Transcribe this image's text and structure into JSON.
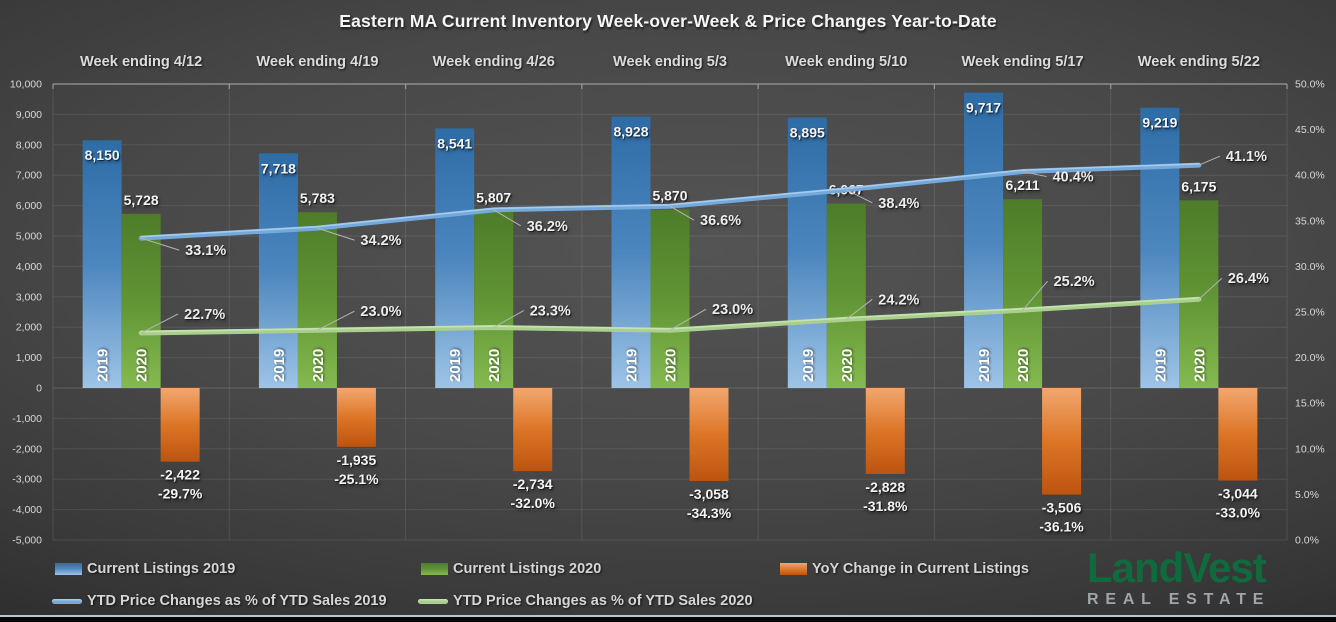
{
  "title": "Eastern MA Current Inventory Week-over-Week & Price Changes Year-to-Date",
  "chart_data": {
    "type": "bar",
    "subtype": "combo bar+line, dual axis",
    "categories": [
      "Week ending 4/12",
      "Week ending 4/19",
      "Week ending 4/26",
      "Week ending 5/3",
      "Week ending 5/10",
      "Week ending 5/17",
      "Week ending 5/22"
    ],
    "series": [
      {
        "name": "Current Listings 2019",
        "kind": "bar",
        "axis": "left",
        "year_label": "2019",
        "values": [
          8150,
          7718,
          8541,
          8928,
          8895,
          9717,
          9219
        ],
        "value_labels": [
          "8,150",
          "7,718",
          "8,541",
          "8,928",
          "8,895",
          "9,717",
          "9,219"
        ],
        "colors": {
          "top": "#2E6CA6",
          "mid": "#4C86BE",
          "bottom": "#9EC4E7"
        },
        "label_placement": "inside-top"
      },
      {
        "name": "Current Listings 2020",
        "kind": "bar",
        "axis": "left",
        "year_label": "2020",
        "values": [
          5728,
          5783,
          5807,
          5870,
          6067,
          6211,
          6175
        ],
        "value_labels": [
          "5,728",
          "5,783",
          "5,807",
          "5,870",
          "6,067",
          "6,211",
          "6,175"
        ],
        "colors": {
          "top": "#4E7C2A",
          "mid": "#619434",
          "bottom": "#84BA50"
        },
        "label_placement": "above-top"
      },
      {
        "name": "YoY Change in Current Listings",
        "kind": "bar",
        "axis": "left",
        "values": [
          -2422,
          -1935,
          -2734,
          -3058,
          -2828,
          -3506,
          -3044
        ],
        "value_labels": [
          "-2,422",
          "-1,935",
          "-2,734",
          "-3,058",
          "-2,828",
          "-3,506",
          "-3,044"
        ],
        "pct_labels": [
          "-29.7%",
          "-25.1%",
          "-32.0%",
          "-34.3%",
          "-31.8%",
          "-36.1%",
          "-33.0%"
        ],
        "colors": {
          "top": "#F2A76F",
          "mid": "#DD7526",
          "bottom": "#BC5410"
        },
        "label_placement": "below-bottom"
      },
      {
        "name": "YTD Price Changes as % of YTD Sales 2019",
        "kind": "line",
        "axis": "right",
        "values": [
          33.1,
          34.2,
          36.2,
          36.6,
          38.4,
          40.4,
          41.1
        ],
        "value_labels": [
          "33.1%",
          "34.2%",
          "36.2%",
          "36.6%",
          "38.4%",
          "40.4%",
          "41.1%"
        ],
        "color": "#74A9DC",
        "highlight": "#A6CBEC"
      },
      {
        "name": "YTD Price Changes as % of YTD Sales 2020",
        "kind": "line",
        "axis": "right",
        "values": [
          22.7,
          23.0,
          23.3,
          23.0,
          24.2,
          25.2,
          26.4
        ],
        "value_labels": [
          "22.7%",
          "23.0%",
          "23.3%",
          "23.0%",
          "24.2%",
          "25.2%",
          "26.4%"
        ],
        "color": "#A9CF8F",
        "highlight": "#C6E2B0"
      }
    ],
    "left_axis": {
      "min": -5000,
      "max": 10000,
      "step": 1000,
      "tick_labels": [
        "10,000",
        "9,000",
        "8,000",
        "7,000",
        "6,000",
        "5,000",
        "4,000",
        "3,000",
        "2,000",
        "1,000",
        "0",
        "-1,000",
        "-2,000",
        "-3,000",
        "-4,000",
        "-5,000"
      ]
    },
    "right_axis": {
      "min": 0,
      "max": 50,
      "step": 5,
      "tick_labels": [
        "50.0%",
        "45.0%",
        "40.0%",
        "35.0%",
        "30.0%",
        "25.0%",
        "20.0%",
        "15.0%",
        "10.0%",
        "5.0%",
        "0.0%"
      ]
    },
    "grid": true,
    "legend_position": "bottom"
  },
  "legend": {
    "row1": [
      {
        "label": "Current Listings 2019",
        "swatch": "bar-blue"
      },
      {
        "label": "Current Listings 2020",
        "swatch": "bar-green"
      },
      {
        "label": "YoY Change in Current Listings",
        "swatch": "bar-orange"
      }
    ],
    "row2": [
      {
        "label": "YTD Price Changes as % of YTD Sales 2019",
        "swatch": "line-blue"
      },
      {
        "label": "YTD Price Changes as % of YTD Sales 2020",
        "swatch": "line-green"
      }
    ]
  },
  "logo": {
    "text": "LandVest",
    "subtext": "REAL ESTATE",
    "color": "#0F6B3E",
    "subtext_color": "#9FA5A9"
  }
}
